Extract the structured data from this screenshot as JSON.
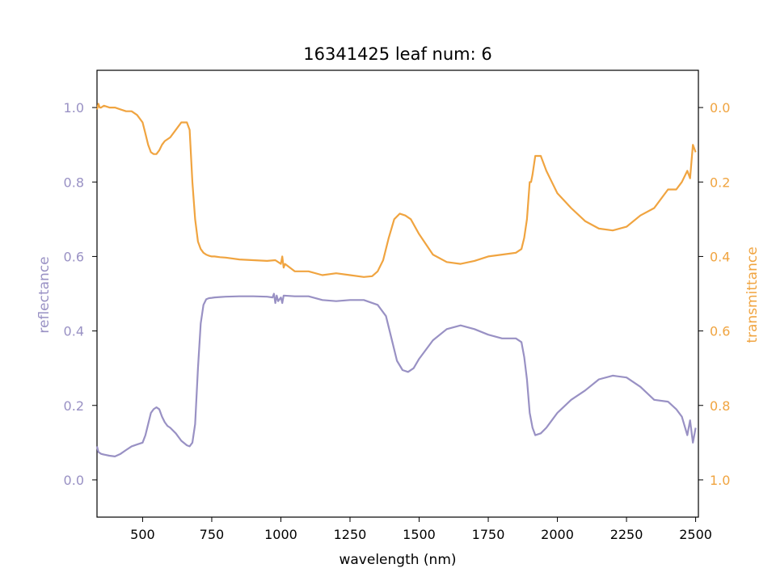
{
  "chart_data": {
    "type": "line",
    "title": "16341425 leaf num: 6",
    "xlabel": "wavelength (nm)",
    "xlim": [
      335,
      2510
    ],
    "x_ticks": [
      500,
      750,
      1000,
      1250,
      1500,
      1750,
      2000,
      2250,
      2500
    ],
    "left_axis": {
      "label": "reflectance",
      "color": "#9991c4",
      "ylim": [
        -0.1,
        1.1
      ],
      "ticks": [
        0.0,
        0.2,
        0.4,
        0.6,
        0.8,
        1.0
      ],
      "tick_labels": [
        "0.0",
        "0.2",
        "0.4",
        "0.6",
        "0.8",
        "1.0"
      ]
    },
    "right_axis": {
      "label": "transmittance",
      "color": "#f0a440",
      "ylim": [
        1.1,
        -0.1
      ],
      "inverted": true,
      "ticks": [
        0.0,
        0.2,
        0.4,
        0.6,
        0.8,
        1.0
      ],
      "tick_labels": [
        "0.0",
        "0.2",
        "0.4",
        "0.6",
        "0.8",
        "1.0"
      ]
    },
    "series": [
      {
        "axis": "left",
        "color": "#9991c4",
        "x": [
          335,
          340,
          350,
          360,
          380,
          400,
          420,
          440,
          460,
          480,
          500,
          510,
          520,
          530,
          540,
          550,
          560,
          570,
          580,
          590,
          600,
          620,
          640,
          660,
          670,
          680,
          690,
          700,
          710,
          720,
          730,
          740,
          750,
          760,
          780,
          800,
          850,
          900,
          950,
          970,
          975,
          980,
          985,
          990,
          1000,
          1005,
          1010,
          1050,
          1100,
          1150,
          1200,
          1250,
          1300,
          1350,
          1380,
          1400,
          1420,
          1440,
          1460,
          1480,
          1500,
          1550,
          1600,
          1650,
          1700,
          1750,
          1800,
          1850,
          1870,
          1880,
          1890,
          1900,
          1910,
          1920,
          1940,
          1960,
          1980,
          2000,
          2050,
          2100,
          2150,
          2200,
          2250,
          2300,
          2350,
          2400,
          2430,
          2450,
          2470,
          2480,
          2490,
          2500
        ],
        "y": [
          0.09,
          0.075,
          0.07,
          0.068,
          0.065,
          0.063,
          0.07,
          0.08,
          0.09,
          0.095,
          0.1,
          0.12,
          0.15,
          0.18,
          0.19,
          0.195,
          0.19,
          0.17,
          0.155,
          0.145,
          0.14,
          0.125,
          0.105,
          0.093,
          0.09,
          0.1,
          0.15,
          0.3,
          0.42,
          0.47,
          0.485,
          0.488,
          0.489,
          0.49,
          0.491,
          0.492,
          0.493,
          0.493,
          0.492,
          0.49,
          0.5,
          0.475,
          0.495,
          0.48,
          0.49,
          0.475,
          0.495,
          0.493,
          0.493,
          0.483,
          0.48,
          0.483,
          0.483,
          0.47,
          0.44,
          0.38,
          0.32,
          0.295,
          0.29,
          0.3,
          0.325,
          0.375,
          0.405,
          0.415,
          0.405,
          0.39,
          0.38,
          0.38,
          0.37,
          0.33,
          0.27,
          0.18,
          0.14,
          0.12,
          0.125,
          0.14,
          0.16,
          0.18,
          0.215,
          0.24,
          0.27,
          0.28,
          0.275,
          0.25,
          0.215,
          0.21,
          0.19,
          0.17,
          0.12,
          0.16,
          0.1,
          0.14
        ]
      },
      {
        "axis": "right",
        "color": "#f0a440",
        "x": [
          335,
          340,
          345,
          350,
          360,
          380,
          400,
          420,
          440,
          460,
          480,
          500,
          510,
          520,
          530,
          540,
          550,
          560,
          570,
          580,
          600,
          620,
          640,
          660,
          670,
          680,
          690,
          700,
          710,
          720,
          730,
          740,
          750,
          760,
          780,
          800,
          850,
          900,
          950,
          980,
          1000,
          1005,
          1010,
          1015,
          1050,
          1100,
          1150,
          1200,
          1250,
          1300,
          1330,
          1350,
          1370,
          1390,
          1410,
          1430,
          1450,
          1470,
          1500,
          1550,
          1600,
          1650,
          1700,
          1750,
          1800,
          1850,
          1870,
          1880,
          1890,
          1900,
          1905,
          1910,
          1920,
          1940,
          1960,
          1980,
          2000,
          2050,
          2100,
          2150,
          2200,
          2250,
          2300,
          2350,
          2400,
          2430,
          2450,
          2470,
          2480,
          2490,
          2500
        ],
        "y": [
          0.005,
          -0.01,
          0.0,
          0.0,
          -0.005,
          0.0,
          0.0,
          0.005,
          0.01,
          0.01,
          0.02,
          0.04,
          0.07,
          0.1,
          0.12,
          0.125,
          0.125,
          0.115,
          0.1,
          0.09,
          0.08,
          0.06,
          0.04,
          0.04,
          0.06,
          0.2,
          0.3,
          0.36,
          0.38,
          0.39,
          0.395,
          0.398,
          0.4,
          0.4,
          0.402,
          0.403,
          0.408,
          0.41,
          0.412,
          0.41,
          0.42,
          0.4,
          0.43,
          0.42,
          0.44,
          0.44,
          0.45,
          0.445,
          0.45,
          0.455,
          0.453,
          0.44,
          0.41,
          0.35,
          0.3,
          0.285,
          0.29,
          0.3,
          0.34,
          0.395,
          0.415,
          0.42,
          0.412,
          0.4,
          0.395,
          0.39,
          0.38,
          0.35,
          0.3,
          0.2,
          0.2,
          0.18,
          0.13,
          0.13,
          0.17,
          0.2,
          0.23,
          0.27,
          0.305,
          0.325,
          0.33,
          0.32,
          0.29,
          0.27,
          0.22,
          0.22,
          0.2,
          0.17,
          0.19,
          0.1,
          0.12
        ]
      }
    ]
  }
}
